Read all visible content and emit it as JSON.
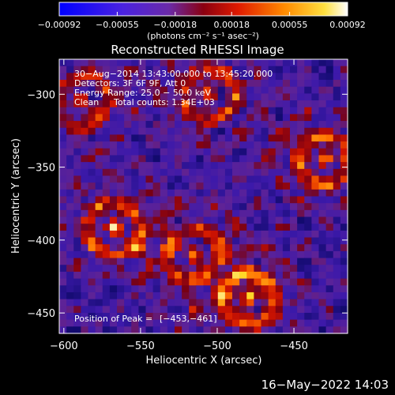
{
  "chart_data": {
    "type": "heatmap",
    "title": "Reconstructed RHESSI Image",
    "xlabel": "Heliocentric X (arcsec)",
    "ylabel": "Heliocentric Y (arcsec)",
    "xlim": [
      -603,
      -415
    ],
    "ylim": [
      -464,
      -276
    ],
    "x_ticks": [
      -600,
      -550,
      -500,
      -450
    ],
    "x_tick_labels": [
      "−600",
      "−550",
      "−500",
      "−450"
    ],
    "y_ticks": [
      -450,
      -400,
      -350,
      -300
    ],
    "y_tick_labels": [
      "−450",
      "−400",
      "−350",
      "−300"
    ],
    "colorbar": {
      "min": -0.00092,
      "max": 0.00092,
      "ticks": [
        -0.00092,
        -0.00055,
        -0.00018,
        0.00018,
        0.00055,
        0.00092
      ],
      "tick_labels": [
        "−0.00092",
        "−0.00055",
        "−0.00018",
        "0.00018",
        "0.00055",
        "0.00092"
      ],
      "units": "(photons cm⁻² s⁻¹ asec⁻²)",
      "colormap": [
        "#0000ff",
        "#5a1fd9",
        "#7a2fa0",
        "#b00000",
        "#ff5a00",
        "#ffc800",
        "#ffffff"
      ]
    },
    "grid": false,
    "annotations": {
      "time_range": "30−Aug−2014 13:43:00.000 to 13:45:20.000",
      "detectors": "Detectors: 3F 6F 9F, Att 0",
      "energy_range": "Energy Range: 25.0 − 50.0 keV",
      "algorithm": "Clean",
      "total_counts": "Total counts: 1.34E+03",
      "peak_label": "Position of Peak = ",
      "peak_value": "[−453,−461]"
    },
    "peak_position": [
      -453,
      -461
    ],
    "bright_sources": [
      {
        "x": -567,
        "y": -392,
        "level": 0.85
      },
      {
        "x": -588,
        "y": -305,
        "level": 0.7
      },
      {
        "x": -505,
        "y": -300,
        "level": 0.8
      },
      {
        "x": -515,
        "y": -410,
        "level": 0.8
      },
      {
        "x": -430,
        "y": -345,
        "level": 0.9
      },
      {
        "x": -480,
        "y": -440,
        "level": 1.0
      }
    ]
  },
  "footer": {
    "date": "16−May−2022 14:03"
  }
}
